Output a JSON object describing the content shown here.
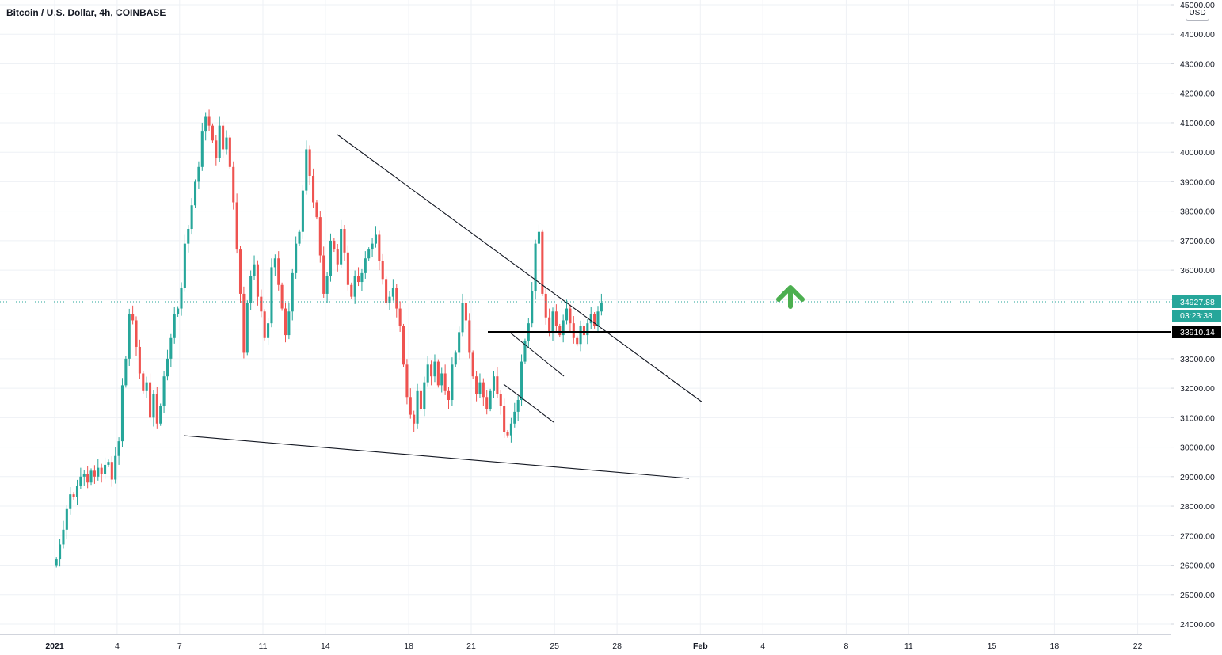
{
  "header": {
    "title": "Bitcoin / U.S. Dollar, 4h, COINBASE",
    "currency_button": "USD"
  },
  "colors": {
    "up": "#26a69a",
    "down": "#ef5350",
    "grid": "#eef1f5",
    "current_price_line": "#26a69a",
    "arrow": "#4caf50",
    "support_tag_bg": "#000000"
  },
  "icons": [
    "up-arrow-icon"
  ],
  "price_labels": {
    "current_price": "34927.88",
    "countdown": "03:23:38",
    "support_price": "33910.14"
  },
  "chart_data": {
    "type": "candlestick",
    "title": "",
    "symbol": "Bitcoin / U.S. Dollar",
    "interval": "4h",
    "exchange": "COINBASE",
    "x_start": "2021-01-01",
    "x_end": "2021-02-23",
    "ylim": [
      23800,
      45000
    ],
    "y_ticks": [
      "45000.00",
      "44000.00",
      "43000.00",
      "42000.00",
      "41000.00",
      "40000.00",
      "39000.00",
      "38000.00",
      "37000.00",
      "36000.00",
      "35000.00",
      "34000.00",
      "33000.00",
      "32000.00",
      "31000.00",
      "30000.00",
      "29000.00",
      "28000.00",
      "27000.00",
      "26000.00",
      "25000.00",
      "24000.00"
    ],
    "x_ticks": [
      {
        "date": "2021-01-01",
        "label": "2021"
      },
      {
        "date": "2021-01-04",
        "label": "4"
      },
      {
        "date": "2021-01-07",
        "label": "7"
      },
      {
        "date": "2021-01-11",
        "label": "11"
      },
      {
        "date": "2021-01-14",
        "label": "14"
      },
      {
        "date": "2021-01-18",
        "label": "18"
      },
      {
        "date": "2021-01-21",
        "label": "21"
      },
      {
        "date": "2021-01-25",
        "label": "25"
      },
      {
        "date": "2021-01-28",
        "label": "28"
      },
      {
        "date": "2021-02-01",
        "label": "Feb"
      },
      {
        "date": "2021-02-04",
        "label": "4"
      },
      {
        "date": "2021-02-08",
        "label": "8"
      },
      {
        "date": "2021-02-11",
        "label": "11"
      },
      {
        "date": "2021-02-15",
        "label": "15"
      },
      {
        "date": "2021-02-18",
        "label": "18"
      },
      {
        "date": "2021-02-22",
        "label": "22"
      }
    ],
    "grid": true,
    "current_price": 34927.88,
    "support_level": 33910.14,
    "closes_4h": [
      26200,
      26700,
      27200,
      27900,
      28400,
      28300,
      28700,
      29000,
      29100,
      28800,
      29200,
      29000,
      29300,
      29100,
      29400,
      29500,
      28900,
      29700,
      30200,
      32100,
      33000,
      34500,
      34300,
      33400,
      32500,
      31900,
      32200,
      31000,
      31800,
      30800,
      31400,
      32400,
      33000,
      33700,
      34500,
      34700,
      35400,
      36900,
      37400,
      38200,
      39000,
      39500,
      40700,
      41200,
      40900,
      40400,
      39800,
      40900,
      40100,
      40500,
      39500,
      38300,
      36700,
      35200,
      33200,
      34900,
      35800,
      36200,
      35100,
      34600,
      33700,
      34200,
      36100,
      36400,
      35500,
      34700,
      33800,
      34600,
      35900,
      36900,
      37300,
      38700,
      40100,
      39200,
      38300,
      37800,
      36500,
      35200,
      35800,
      37000,
      36700,
      36200,
      37400,
      36600,
      35500,
      35100,
      35800,
      35600,
      35900,
      36400,
      36700,
      36900,
      37200,
      36300,
      35700,
      34900,
      35100,
      35400,
      34700,
      34100,
      32800,
      31700,
      31100,
      30800,
      31900,
      31300,
      32200,
      32800,
      32400,
      32900,
      32100,
      32500,
      31900,
      31600,
      32800,
      33200,
      33900,
      34900,
      34300,
      33200,
      32400,
      31800,
      32200,
      31700,
      31300,
      31900,
      32400,
      31800,
      31400,
      30500,
      30400,
      30800,
      31200,
      31600,
      32900,
      33600,
      34200,
      35300,
      36900,
      37300,
      35200,
      34400,
      33900,
      34600,
      34100,
      33800,
      34300,
      34700,
      34200,
      33700,
      33500,
      34100,
      33800,
      34200,
      34500,
      34100,
      34600,
      34900
    ]
  }
}
